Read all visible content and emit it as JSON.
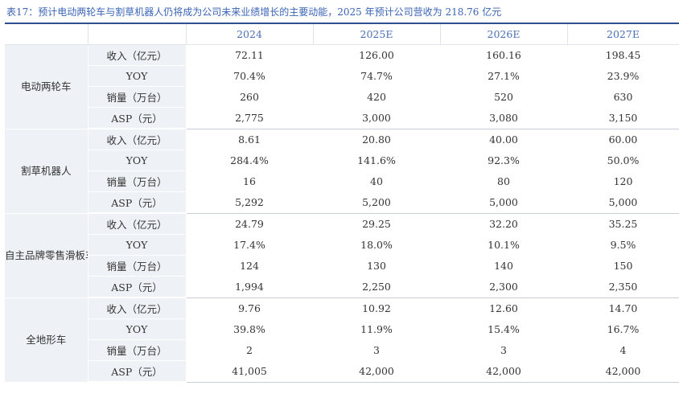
{
  "caption": "表17：预计电动两轮车与割草机器人仍将成为公司未来业绩增长的主要动能，2025 年预计公司营收为 218.76 亿元",
  "columns": [
    "2024",
    "2025E",
    "2026E",
    "2027E"
  ],
  "groups": [
    {
      "name": "电动两轮车",
      "rows": [
        {
          "metric": "收入（亿元）",
          "values": [
            "72.11",
            "126.00",
            "160.16",
            "198.45"
          ]
        },
        {
          "metric": "YOY",
          "values": [
            "70.4%",
            "74.7%",
            "27.1%",
            "23.9%"
          ]
        },
        {
          "metric": "销量（万台）",
          "values": [
            "260",
            "420",
            "520",
            "630"
          ]
        },
        {
          "metric": "ASP（元）",
          "values": [
            "2,775",
            "3,000",
            "3,080",
            "3,150"
          ]
        }
      ]
    },
    {
      "name": "割草机器人",
      "rows": [
        {
          "metric": "收入（亿元）",
          "values": [
            "8.61",
            "20.80",
            "40.00",
            "60.00"
          ]
        },
        {
          "metric": "YOY",
          "values": [
            "284.4%",
            "141.6%",
            "92.3%",
            "50.0%"
          ]
        },
        {
          "metric": "销量（万台）",
          "values": [
            "16",
            "40",
            "80",
            "120"
          ]
        },
        {
          "metric": "ASP（元）",
          "values": [
            "5,292",
            "5,200",
            "5,000",
            "5,000"
          ]
        }
      ]
    },
    {
      "name": "自主品牌零售滑板车",
      "rows": [
        {
          "metric": "收入（亿元）",
          "values": [
            "24.79",
            "29.25",
            "32.20",
            "35.25"
          ]
        },
        {
          "metric": "YOY",
          "values": [
            "17.4%",
            "18.0%",
            "10.1%",
            "9.5%"
          ]
        },
        {
          "metric": "销量（万台）",
          "values": [
            "124",
            "130",
            "140",
            "150"
          ]
        },
        {
          "metric": "ASP（元）",
          "values": [
            "1,994",
            "2,250",
            "2,300",
            "2,350"
          ]
        }
      ]
    },
    {
      "name": "全地形车",
      "rows": [
        {
          "metric": "收入（亿元）",
          "values": [
            "9.76",
            "10.92",
            "12.60",
            "14.70"
          ]
        },
        {
          "metric": "YOY",
          "values": [
            "39.8%",
            "11.9%",
            "15.4%",
            "16.7%"
          ]
        },
        {
          "metric": "销量（万台）",
          "values": [
            "2",
            "3",
            "3",
            "4"
          ]
        },
        {
          "metric": "ASP（元）",
          "values": [
            "41,005",
            "42,000",
            "42,000",
            "42,000"
          ]
        }
      ]
    }
  ]
}
